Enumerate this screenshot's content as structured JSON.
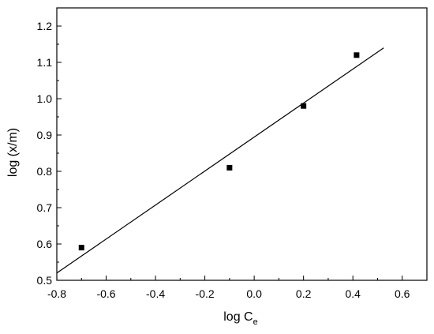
{
  "chart_data": {
    "type": "scatter",
    "xlabel": "log C",
    "xlabel_sub": "e",
    "ylabel": "log (x/m)",
    "xlim": [
      -0.8,
      0.7
    ],
    "ylim": [
      0.5,
      1.25
    ],
    "x_ticks": [
      "-0.8",
      "-0.6",
      "-0.4",
      "-0.2",
      "0.0",
      "0.2",
      "0.4",
      "0.6"
    ],
    "y_ticks": [
      "0.5",
      "0.6",
      "0.7",
      "0.8",
      "0.9",
      "1.0",
      "1.1",
      "1.2"
    ],
    "grid": false,
    "series": [
      {
        "marker": "square",
        "color": "#000000",
        "points": [
          {
            "x": -0.7,
            "y": 0.59
          },
          {
            "x": -0.1,
            "y": 0.81
          },
          {
            "x": 0.2,
            "y": 0.98
          },
          {
            "x": 0.415,
            "y": 1.12
          }
        ]
      }
    ],
    "fit_line": {
      "color": "#000000",
      "points": [
        {
          "x": -0.8,
          "y": 0.52
        },
        {
          "x": 0.525,
          "y": 1.14
        }
      ]
    }
  }
}
